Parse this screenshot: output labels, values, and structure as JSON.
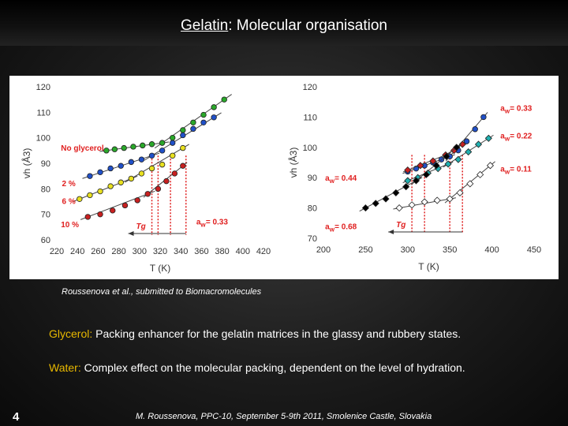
{
  "title": {
    "prefix": "Gelatin",
    "suffix": ": Molecular organisation"
  },
  "citation": "Roussenova et al., submitted to Biomacromolecules",
  "bullets": [
    {
      "key": "Glycerol:",
      "text": " Packing enhancer for the gelatin matrices in the glassy and rubbery states."
    },
    {
      "key": "Water:",
      "text": " Complex effect on the molecular packing, dependent on the level of hydration."
    }
  ],
  "page_number": "4",
  "footer": "M. Roussenova, PPC-10, September 5-9th 2011, Smolenice Castle, Slovakia",
  "colors": {
    "accent": "#e8b800",
    "annotation": "#e02020"
  },
  "chart_data": [
    {
      "type": "scatter",
      "xlabel": "T (K)",
      "ylabel": "vh (Å3)",
      "xlim": [
        220,
        420
      ],
      "ylim": [
        60,
        120
      ],
      "xticks": [
        220,
        240,
        260,
        280,
        300,
        320,
        340,
        360,
        380,
        400,
        420
      ],
      "yticks": [
        60,
        70,
        80,
        90,
        100,
        110,
        120
      ],
      "tg_label": "Tg",
      "annotations": [
        {
          "text": "No glycerol",
          "x": 224,
          "y": 95
        },
        {
          "text": "2 %",
          "x": 225,
          "y": 81
        },
        {
          "text": "6 %",
          "x": 225,
          "y": 74
        },
        {
          "text": "10 %",
          "x": 224,
          "y": 65
        },
        {
          "text": "aw = 0.33",
          "x": 355,
          "y": 66
        }
      ],
      "tg_lines": [
        312,
        318,
        330,
        345
      ],
      "series": [
        {
          "color": "#2aa82a",
          "points": [
            [
              268,
              95
            ],
            [
              276,
              95.5
            ],
            [
              285,
              96
            ],
            [
              294,
              96.5
            ],
            [
              303,
              97
            ],
            [
              312,
              97.5
            ],
            [
              322,
              98
            ],
            [
              332,
              100
            ],
            [
              342,
              103
            ],
            [
              352,
              106
            ],
            [
              362,
              109
            ],
            [
              372,
              112
            ],
            [
              382,
              115
            ]
          ]
        },
        {
          "color": "#2050c8",
          "points": [
            [
              252,
              85
            ],
            [
              262,
              86.5
            ],
            [
              272,
              88
            ],
            [
              282,
              89
            ],
            [
              292,
              90.5
            ],
            [
              302,
              91.5
            ],
            [
              312,
              93
            ],
            [
              322,
              95
            ],
            [
              332,
              98
            ],
            [
              342,
              101
            ],
            [
              352,
              103.5
            ],
            [
              362,
              106
            ],
            [
              372,
              108
            ]
          ]
        },
        {
          "color": "#e8e020",
          "points": [
            [
              242,
              76
            ],
            [
              252,
              77.5
            ],
            [
              262,
              79
            ],
            [
              272,
              81
            ],
            [
              282,
              82.5
            ],
            [
              292,
              84
            ],
            [
              302,
              86
            ],
            [
              312,
              88
            ],
            [
              322,
              89.5
            ],
            [
              332,
              93
            ],
            [
              342,
              96
            ]
          ]
        },
        {
          "color": "#c82020",
          "points": [
            [
              250,
              69
            ],
            [
              262,
              70
            ],
            [
              274,
              71.5
            ],
            [
              286,
              73.5
            ],
            [
              298,
              75.5
            ],
            [
              308,
              78
            ],
            [
              318,
              80
            ],
            [
              326,
              83
            ],
            [
              334,
              86
            ],
            [
              342,
              89
            ]
          ]
        }
      ]
    },
    {
      "type": "scatter",
      "xlabel": "T (K)",
      "ylabel": "vh (Å3)",
      "xlim": [
        200,
        450
      ],
      "ylim": [
        70,
        120
      ],
      "xticks": [
        200,
        250,
        300,
        350,
        400,
        450
      ],
      "yticks": [
        70,
        80,
        90,
        100,
        110,
        120
      ],
      "tg_label": "Tg",
      "annotations": [
        {
          "text": "aw = 0.33",
          "x": 410,
          "y": 112
        },
        {
          "text": "aw = 0.22",
          "x": 410,
          "y": 103
        },
        {
          "text": "aw = 0.11",
          "x": 410,
          "y": 92
        },
        {
          "text": "aw = 0.44",
          "x": 202,
          "y": 89
        },
        {
          "text": "aw = 0.68",
          "x": 202,
          "y": 73
        }
      ],
      "tg_lines": [
        305,
        320,
        350,
        365
      ],
      "series": [
        {
          "color": "#2050c8",
          "marker": "circle",
          "points": [
            [
              300,
              92
            ],
            [
              310,
              93
            ],
            [
              320,
              94
            ],
            [
              330,
              95
            ],
            [
              340,
              96
            ],
            [
              350,
              97
            ],
            [
              360,
              99
            ],
            [
              370,
              102
            ],
            [
              380,
              106
            ],
            [
              390,
              110
            ]
          ]
        },
        {
          "color": "#20b0b0",
          "marker": "diamond",
          "points": [
            [
              300,
              89
            ],
            [
              312,
              90
            ],
            [
              324,
              91.5
            ],
            [
              336,
              93
            ],
            [
              348,
              94.5
            ],
            [
              360,
              96
            ],
            [
              372,
              98.5
            ],
            [
              384,
              101
            ],
            [
              396,
              103
            ]
          ]
        },
        {
          "color": "#c82020",
          "marker": "diamond",
          "points": [
            [
              300,
              92.5
            ],
            [
              315,
              94
            ],
            [
              330,
              95.5
            ],
            [
              345,
              97.5
            ],
            [
              355,
              99
            ],
            [
              365,
              101
            ]
          ]
        },
        {
          "color": "#000000",
          "marker": "diamond",
          "points": [
            [
              250,
              80
            ],
            [
              262,
              81.5
            ],
            [
              274,
              83
            ],
            [
              286,
              85
            ],
            [
              298,
              87
            ],
            [
              310,
              89
            ],
            [
              322,
              91
            ],
            [
              334,
              94
            ],
            [
              346,
              97
            ],
            [
              358,
              100
            ]
          ]
        },
        {
          "color": "#ffffff",
          "marker": "diamond",
          "points": [
            [
              290,
              80
            ],
            [
              305,
              81
            ],
            [
              320,
              82
            ],
            [
              335,
              82.5
            ],
            [
              350,
              83
            ],
            [
              362,
              85
            ],
            [
              374,
              88
            ],
            [
              386,
              91
            ],
            [
              398,
              94
            ]
          ]
        }
      ]
    }
  ]
}
